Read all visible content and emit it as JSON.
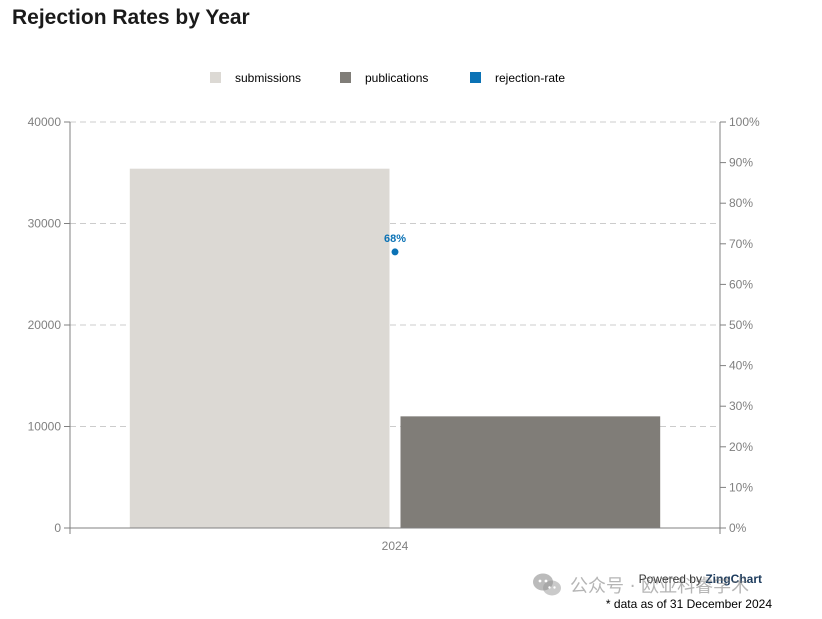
{
  "chart_data": {
    "type": "bar",
    "title": "Rejection Rates by Year",
    "categories": [
      "2024"
    ],
    "series": [
      {
        "name": "submissions",
        "type": "bar",
        "axis": "left",
        "color": "#dcd9d4",
        "values": [
          35400
        ]
      },
      {
        "name": "publications",
        "type": "bar",
        "axis": "left",
        "color": "#807d78",
        "values": [
          11000
        ]
      },
      {
        "name": "rejection-rate",
        "type": "point",
        "axis": "right",
        "color": "#0b72b5",
        "values": [
          68
        ],
        "labels": [
          "68%"
        ]
      }
    ],
    "yaxis_left": {
      "min": 0,
      "max": 40000,
      "ticks": [
        "0",
        "10000",
        "20000",
        "30000",
        "40000"
      ]
    },
    "yaxis_right": {
      "min": 0,
      "max": 100,
      "ticks": [
        "0%",
        "10%",
        "20%",
        "30%",
        "40%",
        "50%",
        "60%",
        "70%",
        "80%",
        "90%",
        "100%"
      ]
    },
    "grid": true,
    "legend_position": "top-center"
  },
  "footer": {
    "powered_prefix": "Powered by",
    "powered_brand": "ZingChart",
    "footnote": "* data as of 31 December 2024"
  },
  "watermark": {
    "text": "公众号 · 欧亚科睿学术",
    "icon": "wechat-icon"
  }
}
